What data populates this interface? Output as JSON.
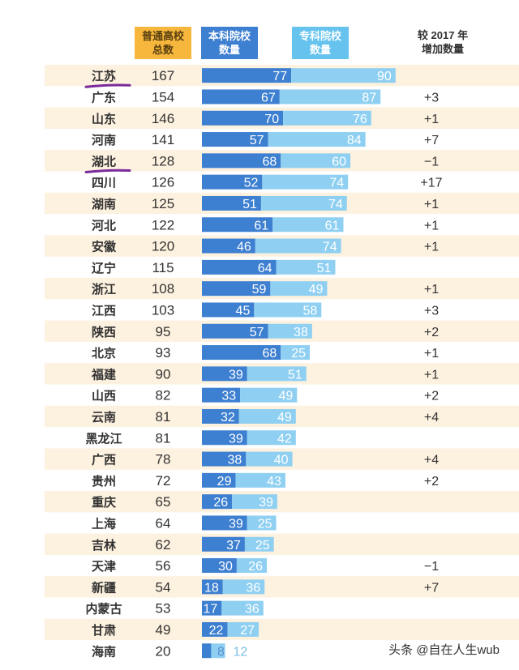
{
  "headers": {
    "total": "普通高校\n总数",
    "ben": "本科院校\n数量",
    "zhuan": "专科院校\n数量",
    "change": "较 2017 年\n增加数量"
  },
  "watermark": "头条 @自在人生wub",
  "colors": {
    "stripe": "#fdf1df",
    "ben_bar": "#3d7fd0",
    "zhuan_bar": "#8fd0f2",
    "text": "#333333",
    "underline": "#7a2a9a"
  },
  "chart_data": {
    "type": "bar",
    "orientation": "horizontal",
    "stacked": true,
    "categories": [
      "江苏",
      "广东",
      "山东",
      "河南",
      "湖北",
      "四川",
      "湖南",
      "河北",
      "安徽",
      "辽宁",
      "浙江",
      "江西",
      "陕西",
      "北京",
      "福建",
      "山西",
      "云南",
      "黑龙江",
      "广西",
      "贵州",
      "重庆",
      "上海",
      "吉林",
      "天津",
      "新疆",
      "内蒙古",
      "甘肃",
      "海南"
    ],
    "totals": [
      167,
      154,
      146,
      141,
      128,
      126,
      125,
      122,
      120,
      115,
      108,
      103,
      95,
      93,
      90,
      82,
      81,
      81,
      78,
      72,
      65,
      64,
      62,
      56,
      54,
      53,
      49,
      20
    ],
    "series": [
      {
        "name": "本科院校数量",
        "values": [
          77,
          67,
          70,
          57,
          68,
          52,
          51,
          61,
          46,
          64,
          59,
          45,
          57,
          68,
          39,
          33,
          32,
          39,
          38,
          29,
          26,
          39,
          37,
          30,
          18,
          17,
          22,
          8
        ]
      },
      {
        "name": "专科院校数量",
        "values": [
          90,
          87,
          76,
          84,
          60,
          74,
          74,
          61,
          74,
          51,
          49,
          58,
          38,
          25,
          51,
          49,
          49,
          42,
          40,
          43,
          39,
          25,
          25,
          26,
          36,
          36,
          27,
          12
        ]
      }
    ],
    "change_vs_2017": [
      "",
      "+3",
      "+1",
      "+7",
      "−1",
      "+17",
      "+1",
      "+1",
      "+1",
      "",
      "+1",
      "+3",
      "+2",
      "+1",
      "+1",
      "+2",
      "+4",
      "",
      "+4",
      "+2",
      "",
      "",
      "",
      "−1",
      "+7",
      "",
      "",
      ""
    ],
    "underlined": [
      "江苏",
      "湖北"
    ]
  }
}
